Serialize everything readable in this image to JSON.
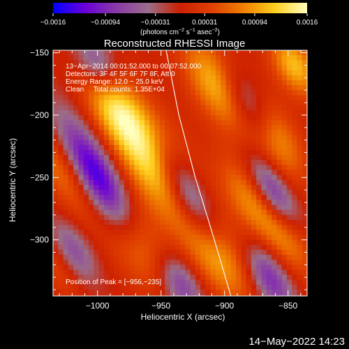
{
  "chart_data": {
    "type": "heatmap",
    "title": "Reconstructed RHESSI Image",
    "xlabel": "Heliocentric X (arcsec)",
    "ylabel": "Heliocentric Y (arcsec)",
    "xlim": [
      -1035,
      -835
    ],
    "ylim": [
      -345,
      -148
    ],
    "x_ticks": [
      -1000,
      -950,
      -900,
      -850
    ],
    "x_tick_labels": [
      "−1000",
      "−950",
      "−900",
      "−850"
    ],
    "y_ticks": [
      -150,
      -200,
      -250,
      -300
    ],
    "y_tick_labels": [
      "−150",
      "−200",
      "−250",
      "−300"
    ],
    "colorbar": {
      "range": [
        -0.0016,
        0.0016
      ],
      "ticks": [
        -0.0016,
        -0.00094,
        -0.00031,
        0.00031,
        0.00094,
        0.0016
      ],
      "tick_labels": [
        "−0.0016",
        "−0.00094",
        "−0.00031",
        "0.00031",
        "0.00094",
        "0.0016"
      ],
      "units_text": "(photons cm",
      "units_exp1": "−2",
      "units_mid": " s",
      "units_exp2": "−1",
      "units_tail": " asec",
      "units_exp3": "−2",
      "units_close": ")"
    },
    "annotations": [
      "13−Apr−2014 00:01:52.000 to 00:07:52.000",
      "Detectors: 3F 4F 5F 6F 7F 8F, Att 0",
      "Energy Range: 12.0 − 25.0 keV",
      "Clean     Total counts: 1.35E+04"
    ],
    "peak_label": "Position of Peak = [−956,−235]",
    "peak": [
      -956,
      -235
    ],
    "blobs": [
      {
        "x": -956,
        "y": -235,
        "v": 0.00155,
        "sa": 16,
        "sb": 40
      },
      {
        "x": -988,
        "y": -192,
        "v": 0.0009,
        "sa": 13,
        "sb": 26
      },
      {
        "x": -968,
        "y": -304,
        "v": 0.00085,
        "sa": 14,
        "sb": 30
      },
      {
        "x": -1028,
        "y": -245,
        "v": 0.0007,
        "sa": 11,
        "sb": 32
      },
      {
        "x": -1030,
        "y": -320,
        "v": 0.0005,
        "sa": 10,
        "sb": 22
      },
      {
        "x": -905,
        "y": -175,
        "v": 0.0012,
        "sa": 14,
        "sb": 30
      },
      {
        "x": -880,
        "y": -268,
        "v": 0.0008,
        "sa": 12,
        "sb": 28
      },
      {
        "x": -905,
        "y": -312,
        "v": 0.0011,
        "sa": 14,
        "sb": 30
      },
      {
        "x": -862,
        "y": -218,
        "v": 0.0012,
        "sa": 12,
        "sb": 26
      },
      {
        "x": -845,
        "y": -160,
        "v": 0.0011,
        "sa": 11,
        "sb": 20
      },
      {
        "x": -850,
        "y": -300,
        "v": 0.0007,
        "sa": 11,
        "sb": 24
      },
      {
        "x": -1000,
        "y": -250,
        "v": -0.0015,
        "sa": 11,
        "sb": 38
      },
      {
        "x": -930,
        "y": -262,
        "v": -0.0014,
        "sa": 10,
        "sb": 34
      },
      {
        "x": -880,
        "y": -195,
        "v": -0.0012,
        "sa": 10,
        "sb": 28
      },
      {
        "x": -862,
        "y": -262,
        "v": -0.0011,
        "sa": 9,
        "sb": 24
      },
      {
        "x": -1000,
        "y": -160,
        "v": -0.0009,
        "sa": 10,
        "sb": 18
      },
      {
        "x": -935,
        "y": -335,
        "v": -0.0009,
        "sa": 10,
        "sb": 20
      },
      {
        "x": -865,
        "y": -330,
        "v": -0.001,
        "sa": 10,
        "sb": 22
      },
      {
        "x": -1020,
        "y": -310,
        "v": -0.0008,
        "sa": 10,
        "sb": 20
      }
    ],
    "limb_curve": [
      [
        -946,
        -148
      ],
      [
        -936,
        -200
      ],
      [
        -923,
        -250
      ],
      [
        -911,
        -290
      ],
      [
        -895,
        -345
      ]
    ],
    "colors": {
      "background": "#000000",
      "text": "#ffffff",
      "limb": "#ffffff",
      "colormap": [
        "#0000ff",
        "#6a00d8",
        "#8a3aa8",
        "#9a6e8a",
        "#cc2000",
        "#e04000",
        "#f08000",
        "#ffd020",
        "#ffffc0"
      ]
    }
  },
  "footer": {
    "timestamp": "14−May−2022 14:23"
  }
}
